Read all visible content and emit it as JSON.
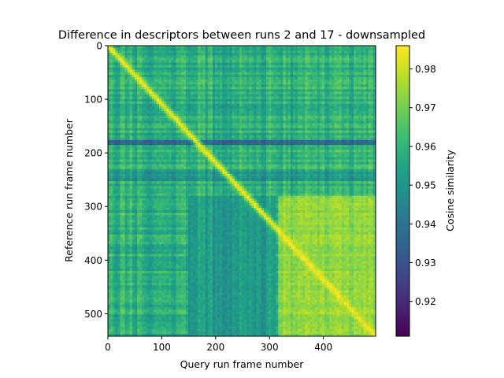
{
  "chart_data": {
    "type": "heatmap",
    "title": "Difference in descriptors between runs 2 and 17 - downsampled",
    "xlabel": "Query run frame number",
    "ylabel": "Reference run frame number",
    "xlim": [
      0,
      497
    ],
    "ylim": [
      0,
      542
    ],
    "y_inverted": true,
    "x_ticks": [
      0,
      100,
      200,
      300,
      400
    ],
    "y_ticks": [
      0,
      100,
      200,
      300,
      400,
      500
    ],
    "colormap": "viridis",
    "colorbar": {
      "label": "Cosine similarity",
      "min": 0.911,
      "max": 0.986,
      "ticks": [
        0.92,
        0.93,
        0.94,
        0.95,
        0.96,
        0.97,
        0.98
      ]
    },
    "features": {
      "diagonal_max": 0.984,
      "background_mean": 0.958,
      "dark_row_band": {
        "frame": 180,
        "value": 0.935
      },
      "dark_row_region": {
        "from": 230,
        "to": 255,
        "value": 0.948
      },
      "bright_block": {
        "query_from": 315,
        "query_to": 497,
        "ref_from": 278,
        "ref_to": 542,
        "value": 0.973
      },
      "darker_block": {
        "query_from": 150,
        "query_to": 310,
        "ref_from": 280,
        "ref_to": 542,
        "value": 0.952
      }
    }
  }
}
